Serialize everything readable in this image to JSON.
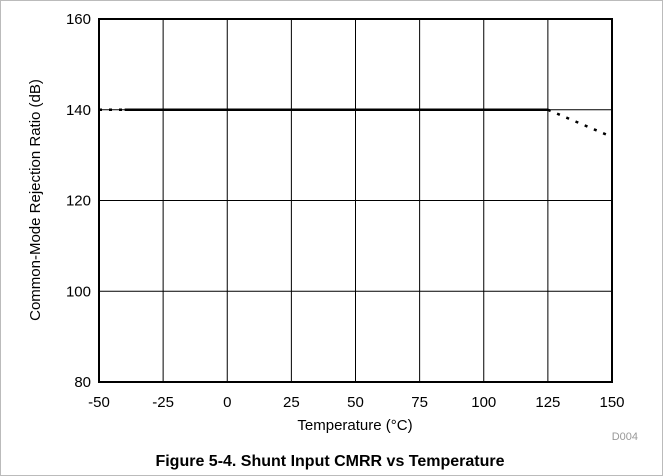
{
  "chart_data": {
    "type": "line",
    "caption": "Figure 5-4. Shunt Input CMRR vs Temperature",
    "xlabel": "Temperature (°C)",
    "ylabel": "Common-Mode Rejection Ratio (dB)",
    "note": "D004",
    "x": [
      -50,
      -40,
      0,
      125,
      150
    ],
    "series": [
      {
        "color": "#000000",
        "style": "solid",
        "values": [
          null,
          140,
          140,
          140,
          null
        ]
      },
      {
        "color": "#000000",
        "style": "dotted",
        "values": [
          140,
          140,
          null,
          140,
          134
        ]
      }
    ],
    "xlim": [
      -50,
      150
    ],
    "xticks": [
      -50,
      -25,
      0,
      25,
      50,
      75,
      100,
      125,
      150
    ],
    "ylim": [
      80,
      160
    ],
    "yticks": [
      80,
      100,
      120,
      140,
      160
    ],
    "grid": true
  }
}
